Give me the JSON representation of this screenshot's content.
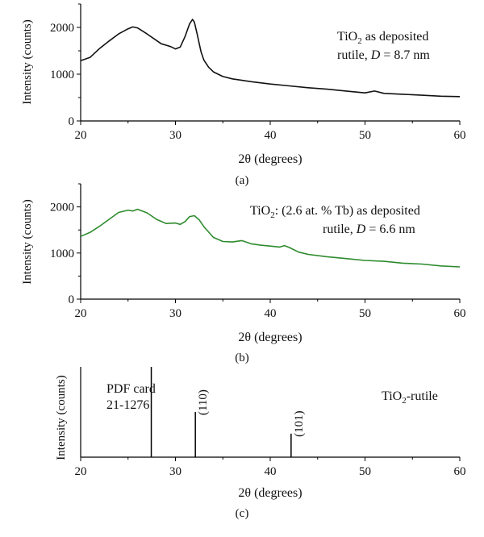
{
  "chart_data": [
    {
      "type": "line",
      "panel_label": "(a)",
      "xlabel": "2θ (degrees)",
      "ylabel": "Intensity (counts)",
      "xlim": [
        20,
        60
      ],
      "ylim": [
        0,
        2500
      ],
      "xticks": [
        20,
        30,
        40,
        50,
        60
      ],
      "yticks": [
        0,
        1000,
        2000
      ],
      "annotation": {
        "line1_pre": "TiO",
        "line1_sub": "2",
        "line1_post": " as deposited",
        "line2_pre": "rutile, ",
        "line2_var": "D",
        "line2_post": " = 8.7 nm"
      },
      "series": [
        {
          "color": "#111111",
          "x": [
            20,
            21,
            22,
            23,
            24,
            25,
            25.5,
            26,
            27,
            28,
            28.5,
            29,
            29.5,
            30,
            30.5,
            31,
            31.5,
            31.8,
            32,
            32.3,
            32.7,
            33,
            33.5,
            34,
            35,
            36,
            38,
            40,
            42,
            44,
            46,
            48,
            50,
            51,
            52,
            54,
            56,
            58,
            60
          ],
          "y": [
            1290,
            1360,
            1550,
            1710,
            1860,
            1970,
            2010,
            1990,
            1860,
            1720,
            1650,
            1620,
            1590,
            1540,
            1580,
            1800,
            2080,
            2170,
            2110,
            1850,
            1480,
            1300,
            1150,
            1050,
            950,
            900,
            840,
            790,
            750,
            710,
            680,
            640,
            600,
            640,
            590,
            570,
            550,
            530,
            520
          ]
        }
      ]
    },
    {
      "type": "line",
      "panel_label": "(b)",
      "xlabel": "2θ (degrees)",
      "ylabel": "Intensity (counts)",
      "xlim": [
        20,
        60
      ],
      "ylim": [
        0,
        2500
      ],
      "xticks": [
        20,
        30,
        40,
        50,
        60
      ],
      "yticks": [
        0,
        1000,
        2000
      ],
      "annotation": {
        "line1_pre": "TiO",
        "line1_sub": "2",
        "line1_post": ": (2.6 at. % Tb) as deposited",
        "line2_pre": "rutile, ",
        "line2_var": "D",
        "line2_post": " = 6.6 nm"
      },
      "series": [
        {
          "color": "#2e8b2e",
          "x": [
            20,
            21,
            22,
            23,
            24,
            25,
            25.5,
            26,
            27,
            28,
            29,
            30,
            30.5,
            31,
            31.5,
            32,
            32.5,
            33,
            34,
            35,
            36,
            37,
            38,
            39,
            40,
            41,
            41.5,
            42,
            43,
            44,
            46,
            48,
            50,
            52,
            54,
            56,
            58,
            60
          ],
          "y": [
            1360,
            1450,
            1580,
            1730,
            1880,
            1930,
            1910,
            1950,
            1870,
            1730,
            1640,
            1650,
            1620,
            1680,
            1790,
            1810,
            1720,
            1570,
            1340,
            1250,
            1240,
            1270,
            1200,
            1170,
            1150,
            1130,
            1160,
            1120,
            1020,
            970,
            920,
            880,
            840,
            820,
            780,
            760,
            720,
            700
          ]
        }
      ]
    },
    {
      "type": "bar",
      "panel_label": "(c)",
      "xlabel": "2θ (degrees)",
      "ylabel": "Intensity (counts)",
      "xlim": [
        20,
        60
      ],
      "ylim": [
        0,
        100
      ],
      "xticks": [
        20,
        30,
        40,
        50,
        60
      ],
      "annotation_left": [
        "PDF card",
        "21-1276"
      ],
      "annotation_right": {
        "pre": "TiO",
        "sub": "2",
        "post": "-rutile"
      },
      "peaks": [
        {
          "x": 27.45,
          "value": 100,
          "label": ""
        },
        {
          "x": 32.1,
          "value": 50,
          "label": "(110)"
        },
        {
          "x": 42.2,
          "value": 26,
          "label": "(101)"
        }
      ]
    }
  ]
}
